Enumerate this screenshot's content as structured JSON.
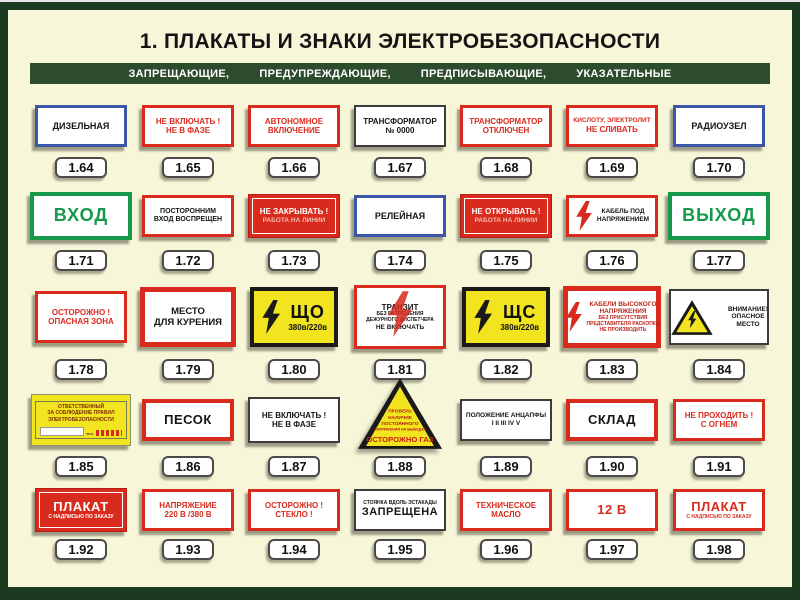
{
  "header": {
    "title": "1. ПЛАКАТЫ И ЗНАКИ ЭЛЕКТРОБЕЗОПАСНОСТИ",
    "categories": [
      "ЗАПРЕЩАЮЩИЕ,",
      "ПРЕДУПРЕЖДАЮЩИЕ,",
      "ПРЕДПИСЫВАЮЩИЕ,",
      "УКАЗАТЕЛЬНЫЕ"
    ]
  },
  "colors": {
    "frame_green": "#1c3a20",
    "strip_green": "#2d4b2d",
    "page_cream": "#f8f6d8",
    "sign_red": "#d92a1e",
    "sign_blue": "#3c57a8",
    "sign_green": "#16994a",
    "sign_yellow": "#f2e41f"
  },
  "signs": [
    {
      "number": "1.64",
      "style": "blue",
      "lines": [
        {
          "t": "ДИЗЕЛЬНАЯ"
        }
      ]
    },
    {
      "number": "1.65",
      "style": "red",
      "lines": [
        {
          "t": "НЕ ВКЛЮЧАТЬ !"
        },
        {
          "t": "НЕ В ФАЗЕ"
        }
      ]
    },
    {
      "number": "1.66",
      "style": "red",
      "lines": [
        {
          "t": "АВТОНОМНОЕ"
        },
        {
          "t": "ВКЛЮЧЕНИЕ"
        }
      ]
    },
    {
      "number": "1.67",
      "style": "black",
      "lines": [
        {
          "t": "ТРАНСФОРМАТОР"
        },
        {
          "t": "№ 0000"
        }
      ]
    },
    {
      "number": "1.68",
      "style": "red",
      "lines": [
        {
          "t": "ТРАНСФОРМАТОР"
        },
        {
          "t": "ОТКЛЮЧЕН"
        }
      ]
    },
    {
      "number": "1.69",
      "style": "red",
      "lines": [
        {
          "t": "КИСЛОТУ, ЭЛЕКТРОЛИТ",
          "s": "small"
        },
        {
          "t": "НЕ СЛИВАТЬ"
        }
      ]
    },
    {
      "number": "1.70",
      "style": "blue",
      "lines": [
        {
          "t": "РАДИОУЗЕЛ"
        }
      ]
    },
    {
      "number": "1.71",
      "style": "green",
      "lines": [
        {
          "t": "ВХОД",
          "s": "huge"
        }
      ]
    },
    {
      "number": "1.72",
      "style": "redblack",
      "lines": [
        {
          "t": "ПОСТОРОННИМ"
        },
        {
          "t": "ВХОД ВОСПРЕЩЕН"
        }
      ]
    },
    {
      "number": "1.73",
      "style": "redfill",
      "lines": [
        {
          "t": "НЕ ЗАКРЫВАТЬ !"
        },
        {
          "t": "РАБОТА НА ЛИНИИ",
          "s": "dim"
        }
      ]
    },
    {
      "number": "1.74",
      "style": "blue",
      "lines": [
        {
          "t": "РЕЛЕЙНАЯ"
        }
      ]
    },
    {
      "number": "1.75",
      "style": "redfill",
      "lines": [
        {
          "t": "НЕ ОТКРЫВАТЬ !"
        },
        {
          "t": "РАБОТА НА ЛИНИИ",
          "s": "dim"
        }
      ]
    },
    {
      "number": "1.76",
      "style": "redblack",
      "icon": "bolt-red",
      "lines": [
        {
          "t": "КАБЕЛЬ ПОД",
          "s": "small"
        },
        {
          "t": "НАПРЯЖЕНИЕМ",
          "s": "small"
        }
      ]
    },
    {
      "number": "1.77",
      "style": "green",
      "lines": [
        {
          "t": "ВЫХОД",
          "s": "huge"
        }
      ]
    },
    {
      "number": "1.78",
      "style": "red",
      "lines": [
        {
          "t": "ОСТОРОЖНО !"
        },
        {
          "t": "ОПАСНАЯ ЗОНА"
        }
      ]
    },
    {
      "number": "1.79",
      "style": "redblack",
      "lines": [
        {
          "t": "МЕСТО"
        },
        {
          "t": "ДЛЯ КУРЕНИЯ"
        }
      ]
    },
    {
      "number": "1.80",
      "style": "yellow",
      "icon": "bolt-black",
      "lines": [
        {
          "t": "ЩО",
          "s": "huge"
        },
        {
          "t": "380в/220в"
        }
      ]
    },
    {
      "number": "1.81",
      "style": "redblack",
      "icon": "bolt-overlay",
      "lines": [
        {
          "t": "ТРАНЗИТ"
        },
        {
          "t": "БЕЗ РАЗРЕШЕНИЯ",
          "s": "tiny"
        },
        {
          "t": "ДЕЖУРНОГО ДИСПЕТЧЕРА",
          "s": "tiny"
        },
        {
          "t": "НЕ ВКЛЮЧАТЬ",
          "s": "small"
        }
      ]
    },
    {
      "number": "1.82",
      "style": "yellow",
      "icon": "bolt-black",
      "lines": [
        {
          "t": "ЩС",
          "s": "huge"
        },
        {
          "t": "380в/220в"
        }
      ]
    },
    {
      "number": "1.83",
      "style": "redwide",
      "icon": "bolt-red",
      "lines": [
        {
          "t": "КАБЕЛИ ВЫСОКОГО",
          "s": "small"
        },
        {
          "t": "НАПРЯЖЕНИЯ",
          "s": "small"
        },
        {
          "t": "БЕЗ ПРИСУТСТВИЯ",
          "s": "tiny"
        },
        {
          "t": "ПРЕДСТАВИТЕЛЯ РАСКОПКИ",
          "s": "tiny"
        },
        {
          "t": "НЕ ПРОИЗВОДИТЬ",
          "s": "tiny"
        }
      ]
    },
    {
      "number": "1.84",
      "style": "warnsplit",
      "lines": [
        {
          "t": "ВНИМАНИЕ!"
        },
        {
          "t": "ОПАСНОЕ"
        },
        {
          "t": "МЕСТО"
        }
      ]
    },
    {
      "number": "1.85",
      "style": "card",
      "lines": [
        {
          "t": "ОТВЕТСТВЕННЫЙ"
        },
        {
          "t": "ЗА СОБЛЮДЕНИЕ ПРАВИЛ"
        },
        {
          "t": "ЭЛЕКТРОБЕЗОПАСНОСТИ"
        }
      ],
      "extra": "тел."
    },
    {
      "number": "1.86",
      "style": "redblack",
      "lines": [
        {
          "t": "ПЕСОК",
          "s": "big"
        }
      ]
    },
    {
      "number": "1.87",
      "style": "black",
      "lines": [
        {
          "t": "НЕ ВКЛЮЧАТЬ !"
        },
        {
          "t": "НЕ В ФАЗЕ"
        }
      ]
    },
    {
      "number": "1.88",
      "style": "triangle",
      "lines": [
        {
          "t": "ПРОВЕРЬ"
        },
        {
          "t": "НАЛИЧИЕ"
        },
        {
          "t": "ПОСТОЯННОГО"
        },
        {
          "t": "НАПРЯЖЕНИЯ НА ВЫВОДАХ"
        }
      ],
      "banner": "ОСТОРОЖНО ГАЗ"
    },
    {
      "number": "1.89",
      "style": "black",
      "lines": [
        {
          "t": "ПОЛОЖЕНИЕ АНЦАПФЫ",
          "s": "small"
        },
        {
          "t": "I II III IV V",
          "s": "small"
        }
      ]
    },
    {
      "number": "1.90",
      "style": "redblack",
      "lines": [
        {
          "t": "СКЛАД",
          "s": "big"
        }
      ]
    },
    {
      "number": "1.91",
      "style": "red",
      "lines": [
        {
          "t": "НЕ ПРОХОДИТЬ !"
        },
        {
          "t": "С ОГНЕМ"
        }
      ]
    },
    {
      "number": "1.92",
      "style": "redfill",
      "lines": [
        {
          "t": "ПЛАКАТ",
          "s": "big"
        },
        {
          "t": "С НАДПИСЬЮ ПО ЗАКАЗУ",
          "s": "tiny"
        }
      ]
    },
    {
      "number": "1.93",
      "style": "red",
      "lines": [
        {
          "t": "НАПРЯЖЕНИЕ"
        },
        {
          "t": "220 В /380 В"
        }
      ]
    },
    {
      "number": "1.94",
      "style": "red",
      "lines": [
        {
          "t": "ОСТОРОЖНО !"
        },
        {
          "t": "СТЕКЛО !"
        }
      ]
    },
    {
      "number": "1.95",
      "style": "black",
      "lines": [
        {
          "t": "СТОЯНКА ВДОЛЬ ЭСТАКАДЫ",
          "s": "tiny"
        },
        {
          "t": "ЗАПРЕЩЕНА",
          "s": "big"
        }
      ]
    },
    {
      "number": "1.96",
      "style": "red",
      "lines": [
        {
          "t": "ТЕХНИЧЕСКОЕ"
        },
        {
          "t": "МАСЛО"
        }
      ]
    },
    {
      "number": "1.97",
      "style": "red",
      "lines": [
        {
          "t": "12 В",
          "s": "big"
        }
      ]
    },
    {
      "number": "1.98",
      "style": "red",
      "lines": [
        {
          "t": "ПЛАКАТ",
          "s": "big"
        },
        {
          "t": "С НАДПИСЬЮ ПО ЗАКАЗУ",
          "s": "tiny"
        }
      ]
    }
  ]
}
